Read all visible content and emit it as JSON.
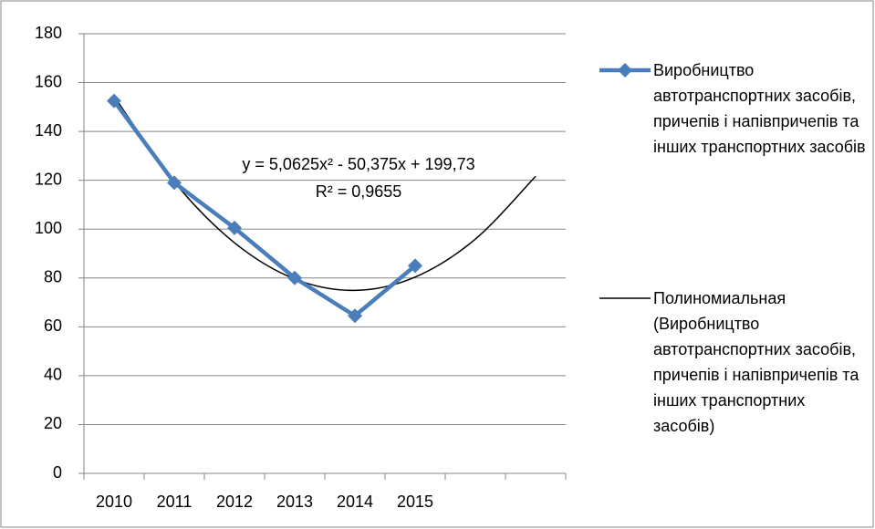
{
  "chart_data": {
    "type": "line",
    "categories": [
      "2010",
      "2011",
      "2012",
      "2013",
      "2014",
      "2015",
      null,
      null
    ],
    "series": [
      {
        "name": "Виробництво автотранспортних засобів, причепів і напівпричепів та інших транспортних засобів",
        "color": "#4a7ebb",
        "values": [
          152.5,
          119,
          100.5,
          80,
          64.5,
          85,
          null,
          null
        ]
      },
      {
        "name": "Полиномиальная (Виробництво автотранспортних засобів, причепів і напівпричепів та інших транспортних засобів)",
        "color": "#000000",
        "values": [
          154.42,
          119.36,
          94.42,
          79.61,
          74.92,
          80.36,
          95.92,
          121.61
        ]
      }
    ],
    "annotations": [
      "y = 5,0625x² - 50,375x + 199,73",
      "R² = 0,9655"
    ],
    "ylim": [
      0,
      180
    ],
    "yticks": [
      0,
      20,
      40,
      60,
      80,
      100,
      120,
      140,
      160,
      180
    ],
    "grid": true,
    "legend": "right"
  }
}
